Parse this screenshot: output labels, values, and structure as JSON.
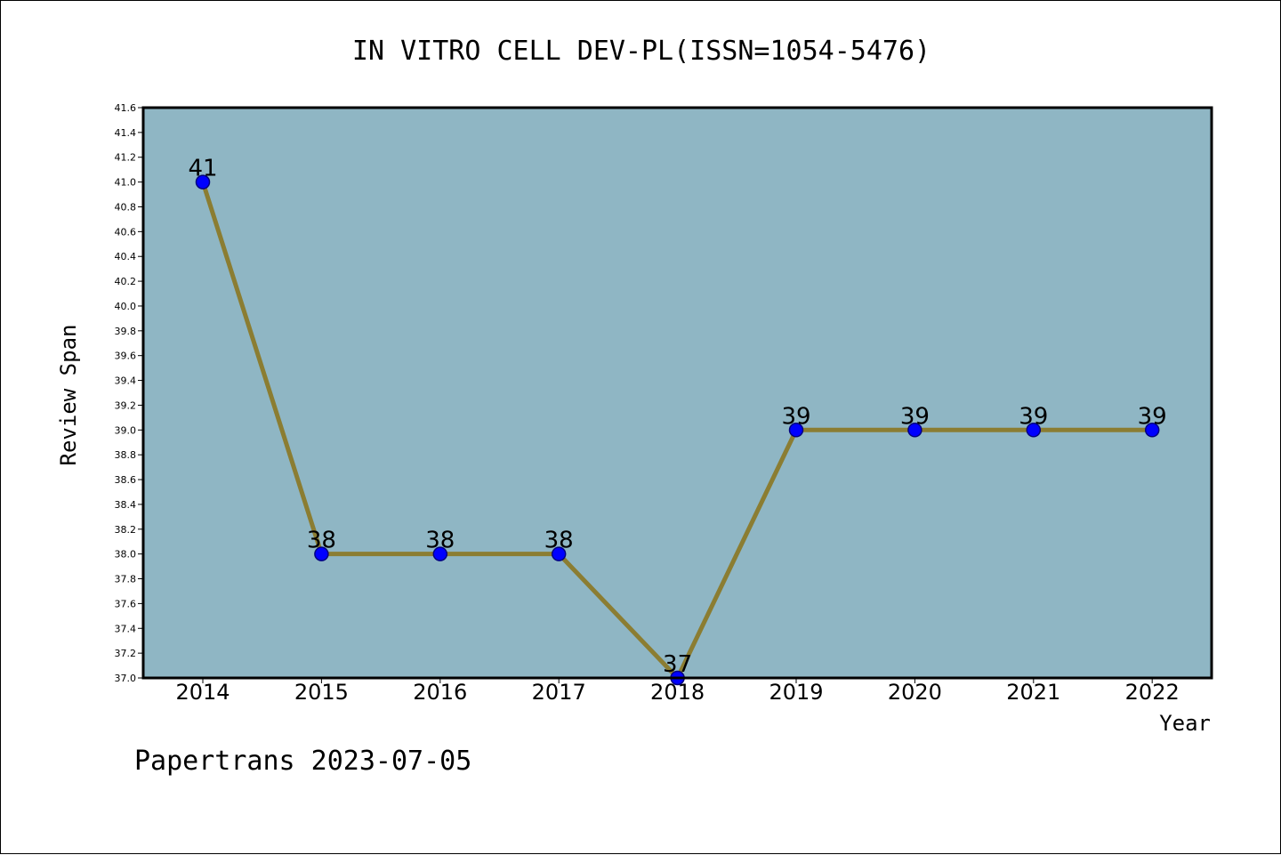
{
  "chart_data": {
    "type": "line",
    "title": "IN VITRO CELL DEV-PL(ISSN=1054-5476)",
    "xlabel": "Year",
    "ylabel": "Review Span",
    "categories": [
      "2014",
      "2015",
      "2016",
      "2017",
      "2018",
      "2019",
      "2020",
      "2021",
      "2022"
    ],
    "values": [
      41,
      38,
      38,
      38,
      37,
      39,
      39,
      39,
      39
    ],
    "data_labels": [
      "41",
      "38",
      "38",
      "38",
      "37",
      "39",
      "39",
      "39",
      "39"
    ],
    "ylim": [
      37.0,
      41.6
    ],
    "y_ticks": [
      "37.0",
      "37.2",
      "37.4",
      "37.6",
      "37.8",
      "38.0",
      "38.2",
      "38.4",
      "38.6",
      "38.8",
      "39.0",
      "39.2",
      "39.4",
      "39.6",
      "39.8",
      "40.0",
      "40.2",
      "40.4",
      "40.6",
      "40.8",
      "41.0",
      "41.2",
      "41.4",
      "41.6"
    ],
    "grid": false,
    "colors": {
      "plot_background": "#8fb6c4",
      "line": "#8b7d32",
      "marker": "#0000ff",
      "marker_edge": "#000080",
      "text": "#000000"
    }
  },
  "footer": {
    "credit": "Papertrans 2023-07-05"
  }
}
